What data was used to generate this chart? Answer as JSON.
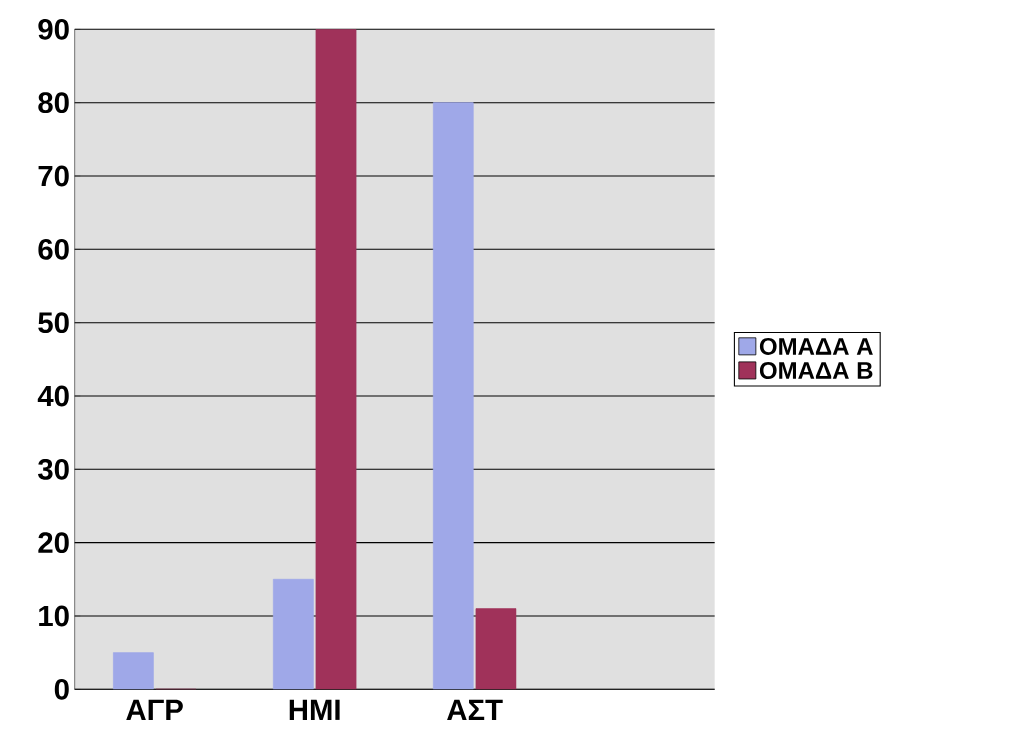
{
  "chart_data": {
    "type": "bar",
    "categories": [
      "ΑΓΡ",
      "ΗΜΙ",
      "ΑΣΤ",
      null
    ],
    "series": [
      {
        "name": "ΟΜΑΔΑ Α",
        "color": "#9fa8e8",
        "values": [
          5,
          15,
          80,
          null
        ]
      },
      {
        "name": "ΟΜΑΔΑ Β",
        "color": "#a0325a",
        "values": [
          0,
          90,
          11,
          null
        ]
      }
    ],
    "ylim": [
      0,
      90
    ],
    "yticks": [
      0,
      10,
      20,
      30,
      40,
      50,
      60,
      70,
      80,
      90
    ],
    "grid": "y",
    "legend": "right"
  }
}
